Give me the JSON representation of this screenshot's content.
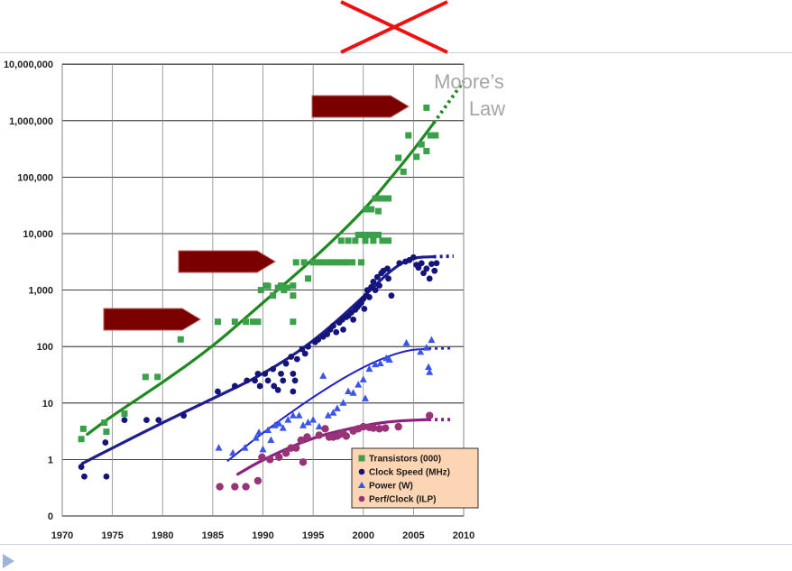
{
  "colors": {
    "transistors": "#3aa04a",
    "transistors_line": "#1f8a1f",
    "clock": "#14147a",
    "clock_line": "#1e1e8e",
    "power": "#3b55e6",
    "power_line": "#2222cc",
    "ilp": "#993377",
    "ilp_line": "#8b2080",
    "arrow": "#7a0000",
    "cross": "#ee1111",
    "legend_bg": "#fcd5b4",
    "grid": "#888888"
  },
  "icons": {
    "cross": "red-x-cross-icon",
    "bullet": "triangle-bullet-icon",
    "arrow": "right-arrow-shape"
  },
  "chart_data": {
    "type": "scatter",
    "title": "",
    "xlabel": "",
    "ylabel": "",
    "xlim": [
      1970,
      2010
    ],
    "ylim": [
      0,
      10000000
    ],
    "yscale": "log",
    "grid": true,
    "legend_position": "bottom-right",
    "x_ticks": [
      "1970",
      "1975",
      "1980",
      "1985",
      "1990",
      "1995",
      "2000",
      "2005",
      "2010"
    ],
    "y_ticks": [
      {
        "value": 0,
        "label": "0"
      },
      {
        "value": 1,
        "label": "1"
      },
      {
        "value": 10,
        "label": "10"
      },
      {
        "value": 100,
        "label": "100"
      },
      {
        "value": 1000,
        "label": "1,000"
      },
      {
        "value": 10000,
        "label": "10,000"
      },
      {
        "value": 100000,
        "label": "100,000"
      },
      {
        "value": 1000000,
        "label": "1,000,000"
      },
      {
        "value": 10000000,
        "label": "10,000,000"
      }
    ],
    "annotation": {
      "line1": "Moore’s",
      "line2": "Law"
    },
    "series": [
      {
        "name": "Transistors (000)",
        "marker": "square",
        "points": [
          [
            1971.9,
            2.3
          ],
          [
            1972.1,
            3.5
          ],
          [
            1974.2,
            4.5
          ],
          [
            1974.4,
            3.1
          ],
          [
            1976.2,
            6.5
          ],
          [
            1978.3,
            29
          ],
          [
            1979.5,
            29
          ],
          [
            1981.8,
            134
          ],
          [
            1985.5,
            275
          ],
          [
            1987.2,
            275
          ],
          [
            1988.3,
            275
          ],
          [
            1989.0,
            275
          ],
          [
            1989.5,
            275
          ],
          [
            1989.8,
            1000
          ],
          [
            1990.3,
            1200
          ],
          [
            1990.5,
            1180
          ],
          [
            1991.0,
            800
          ],
          [
            1991.5,
            1100
          ],
          [
            1991.8,
            1200
          ],
          [
            1992.1,
            1000
          ],
          [
            1992.4,
            1100
          ],
          [
            1993.0,
            1200
          ],
          [
            1993.0,
            800
          ],
          [
            1993.0,
            275
          ],
          [
            1993.3,
            3100
          ],
          [
            1994.1,
            3100
          ],
          [
            1994.5,
            1600
          ],
          [
            1995.0,
            3100
          ],
          [
            1995.6,
            3100
          ],
          [
            1996.2,
            3100
          ],
          [
            1996.8,
            3100
          ],
          [
            1997.3,
            3100
          ],
          [
            1997.8,
            7500
          ],
          [
            1997.9,
            3100
          ],
          [
            1998.3,
            3100
          ],
          [
            1998.5,
            7500
          ],
          [
            1998.9,
            3100
          ],
          [
            1999.2,
            7500
          ],
          [
            1999.8,
            3100
          ],
          [
            1999.5,
            9500
          ],
          [
            2000.0,
            9500
          ],
          [
            2000.2,
            7500
          ],
          [
            2000.3,
            27000
          ],
          [
            2000.5,
            9500
          ],
          [
            2000.8,
            27000
          ],
          [
            2001.0,
            9500
          ],
          [
            2001.0,
            7500
          ],
          [
            2001.2,
            42000
          ],
          [
            2001.5,
            9500
          ],
          [
            2001.8,
            42000
          ],
          [
            2001.9,
            7500
          ],
          [
            2002.2,
            42000
          ],
          [
            2002.5,
            42000
          ],
          [
            2002.5,
            7500
          ],
          [
            2001.5,
            25000
          ],
          [
            2003.5,
            220000
          ],
          [
            2004.0,
            125000
          ],
          [
            2004.5,
            550000
          ],
          [
            2005.3,
            230000
          ],
          [
            2005.8,
            380000
          ],
          [
            2006.3,
            290000
          ],
          [
            2006.3,
            1700000
          ],
          [
            2006.7,
            550000
          ],
          [
            2007.2,
            550000
          ]
        ]
      },
      {
        "name": "Clock Speed (MHz)",
        "marker": "circle",
        "points": [
          [
            1971.9,
            0.74
          ],
          [
            1972.2,
            0.5
          ],
          [
            1974.3,
            2.0
          ],
          [
            1974.4,
            0.5
          ],
          [
            1976.2,
            5
          ],
          [
            1978.4,
            5
          ],
          [
            1979.6,
            5
          ],
          [
            1982.1,
            6
          ],
          [
            1985.5,
            16
          ],
          [
            1987.2,
            20
          ],
          [
            1988.4,
            25
          ],
          [
            1989.2,
            25
          ],
          [
            1989.5,
            33
          ],
          [
            1989.7,
            20
          ],
          [
            1990.2,
            33
          ],
          [
            1990.5,
            25
          ],
          [
            1991.0,
            40
          ],
          [
            1991.1,
            20
          ],
          [
            1991.5,
            17
          ],
          [
            1991.8,
            33
          ],
          [
            1992.0,
            25
          ],
          [
            1992.3,
            50
          ],
          [
            1992.8,
            66
          ],
          [
            1993.0,
            33
          ],
          [
            1993.0,
            16
          ],
          [
            1993.2,
            25
          ],
          [
            1993.4,
            60
          ],
          [
            1993.9,
            90
          ],
          [
            1994.2,
            75
          ],
          [
            1994.5,
            100
          ],
          [
            1995.2,
            120
          ],
          [
            1995.5,
            133
          ],
          [
            1996.0,
            150
          ],
          [
            1996.4,
            166
          ],
          [
            1996.7,
            200
          ],
          [
            1997.0,
            233
          ],
          [
            1997.3,
            180
          ],
          [
            1997.6,
            266
          ],
          [
            1997.9,
            300
          ],
          [
            1998.0,
            200
          ],
          [
            1998.3,
            333
          ],
          [
            1998.5,
            350
          ],
          [
            1998.8,
            400
          ],
          [
            1999.0,
            300
          ],
          [
            1999.2,
            450
          ],
          [
            1999.4,
            500
          ],
          [
            1999.6,
            550
          ],
          [
            1999.8,
            600
          ],
          [
            2000.0,
            700
          ],
          [
            2000.1,
            466
          ],
          [
            2000.3,
            800
          ],
          [
            2000.4,
            1000
          ],
          [
            2000.6,
            750
          ],
          [
            2000.8,
            1130
          ],
          [
            2001.0,
            1400
          ],
          [
            2001.2,
            1000
          ],
          [
            2001.4,
            1700
          ],
          [
            2001.6,
            1200
          ],
          [
            2001.8,
            2000
          ],
          [
            2002.0,
            2200
          ],
          [
            2002.4,
            2400
          ],
          [
            2002.5,
            1600
          ],
          [
            2002.8,
            800
          ],
          [
            2003.6,
            3000
          ],
          [
            2004.2,
            3200
          ],
          [
            2004.6,
            3400
          ],
          [
            2005.0,
            3800
          ],
          [
            2005.3,
            2800
          ],
          [
            2005.5,
            2500
          ],
          [
            2005.8,
            3000
          ],
          [
            2006.0,
            2000
          ],
          [
            2006.3,
            2400
          ],
          [
            2006.6,
            1600
          ],
          [
            2006.8,
            2900
          ],
          [
            2007.1,
            2200
          ],
          [
            2007.3,
            3000
          ]
        ]
      },
      {
        "name": "Power (W)",
        "marker": "triangle",
        "points": [
          [
            1985.6,
            1.6
          ],
          [
            1987.0,
            1.3
          ],
          [
            1988.2,
            1.6
          ],
          [
            1989.3,
            2.4
          ],
          [
            1989.6,
            3
          ],
          [
            1990.0,
            1.5
          ],
          [
            1990.5,
            3.3
          ],
          [
            1990.8,
            2.2
          ],
          [
            1991.2,
            4
          ],
          [
            1991.6,
            4.3
          ],
          [
            1992.0,
            3.6
          ],
          [
            1992.5,
            5
          ],
          [
            1993.0,
            6
          ],
          [
            1993.6,
            6
          ],
          [
            1994.0,
            4
          ],
          [
            1994.5,
            4.5
          ],
          [
            1995.0,
            5
          ],
          [
            1995.6,
            3.8
          ],
          [
            1996.0,
            30
          ],
          [
            1996.5,
            6
          ],
          [
            1997.0,
            6.7
          ],
          [
            1997.4,
            8
          ],
          [
            1998.0,
            10
          ],
          [
            1998.5,
            16
          ],
          [
            1999.0,
            15
          ],
          [
            1999.5,
            21
          ],
          [
            2000.0,
            26
          ],
          [
            2000.2,
            12
          ],
          [
            2000.6,
            40
          ],
          [
            2001.2,
            48
          ],
          [
            2001.7,
            50
          ],
          [
            2002.3,
            62
          ],
          [
            2002.6,
            58
          ],
          [
            2004.3,
            115
          ],
          [
            2005.7,
            80
          ],
          [
            2006.3,
            95
          ],
          [
            2006.5,
            43
          ],
          [
            2006.6,
            35
          ],
          [
            2006.8,
            130
          ]
        ]
      },
      {
        "name": "Perf/Clock (ILP)",
        "marker": "circle",
        "points": [
          [
            1985.7,
            0.33
          ],
          [
            1987.2,
            0.33
          ],
          [
            1988.3,
            0.33
          ],
          [
            1989.5,
            0.42
          ],
          [
            1989.9,
            1.1
          ],
          [
            1990.7,
            1.0
          ],
          [
            1991.6,
            1.1
          ],
          [
            1992.3,
            1.3
          ],
          [
            1992.8,
            1.6
          ],
          [
            1993.3,
            1.6
          ],
          [
            1993.8,
            2.2
          ],
          [
            1994.0,
            0.9
          ],
          [
            1994.4,
            2.5
          ],
          [
            1995.6,
            2.7
          ],
          [
            1996.2,
            3.5
          ],
          [
            1996.6,
            2.5
          ],
          [
            1997.0,
            2.5
          ],
          [
            1997.4,
            2.6
          ],
          [
            1997.7,
            2.8
          ],
          [
            1998.0,
            2.9
          ],
          [
            1998.3,
            2.6
          ],
          [
            1999.0,
            3.2
          ],
          [
            1999.5,
            3.5
          ],
          [
            2000.0,
            3.8
          ],
          [
            2000.6,
            3.7
          ],
          [
            2001.0,
            3.6
          ],
          [
            2001.6,
            3.5
          ],
          [
            2002.2,
            3.6
          ],
          [
            2003.5,
            3.8
          ],
          [
            2006.6,
            6
          ]
        ]
      }
    ],
    "trend_lines": [
      {
        "series": "Transistors (000)",
        "points": [
          [
            1972.5,
            2.8
          ],
          [
            1975,
            6
          ],
          [
            1980,
            23
          ],
          [
            1985,
            100
          ],
          [
            1990,
            600
          ],
          [
            1995,
            3500
          ],
          [
            2000,
            25000
          ],
          [
            2003,
            110000
          ],
          [
            2005,
            300000
          ],
          [
            2007,
            900000
          ]
        ],
        "projection": [
          [
            2007,
            900000
          ],
          [
            2010,
            5000000
          ]
        ]
      },
      {
        "series": "Clock Speed (MHz)",
        "points": [
          [
            1972,
            0.85
          ],
          [
            1975,
            1.6
          ],
          [
            1980,
            4.5
          ],
          [
            1985,
            12
          ],
          [
            1990,
            32
          ],
          [
            1995,
            120
          ],
          [
            2000,
            750
          ],
          [
            2003,
            2500
          ],
          [
            2005,
            3800
          ],
          [
            2007,
            3900
          ]
        ],
        "projection": [
          [
            2007,
            3900
          ],
          [
            2009,
            4000
          ]
        ]
      },
      {
        "series": "Power (W)",
        "points": [
          [
            1986.5,
            0.95
          ],
          [
            1990,
            3
          ],
          [
            1995,
            13
          ],
          [
            2000,
            45
          ],
          [
            2004,
            85
          ],
          [
            2006.5,
            92
          ]
        ],
        "projection": [
          [
            2006.5,
            92
          ],
          [
            2009,
            93
          ]
        ]
      },
      {
        "series": "Perf/Clock (ILP)",
        "points": [
          [
            1987.5,
            0.55
          ],
          [
            1990,
            1.0
          ],
          [
            1995,
            2.5
          ],
          [
            2000,
            4
          ],
          [
            2003,
            4.8
          ],
          [
            2006.5,
            5.1
          ]
        ],
        "projection": [
          [
            2006.5,
            5.1
          ],
          [
            2009,
            5.1
          ]
        ]
      }
    ]
  }
}
